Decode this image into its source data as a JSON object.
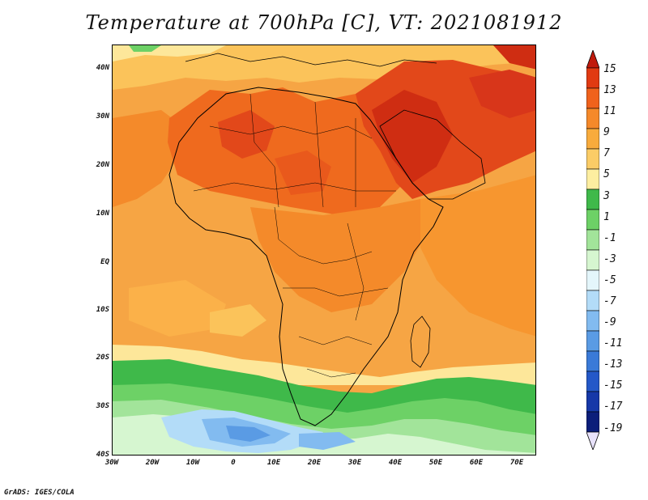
{
  "title": "Temperature at 700hPa [C], VT: 2021081912",
  "credit": "GrADS: IGES/COLA",
  "axes": {
    "lat_ticks": [
      "40N",
      "30N",
      "20N",
      "10N",
      "EQ",
      "10S",
      "20S",
      "30S",
      "40S"
    ],
    "lon_ticks": [
      "30W",
      "20W",
      "10W",
      "0",
      "10E",
      "20E",
      "30E",
      "40E",
      "50E",
      "60E",
      "70E"
    ]
  },
  "colorbar": {
    "labels": [
      "15",
      "13",
      "11",
      "9",
      "7",
      "5",
      "3",
      "1",
      "-1",
      "-3",
      "-5",
      "-7",
      "-9",
      "-11",
      "-13",
      "-15",
      "-17",
      "-19"
    ],
    "colors": [
      "#e13a12",
      "#f0621c",
      "#f5892a",
      "#f8ab3c",
      "#fbcc66",
      "#fdeea0",
      "#3fb94a",
      "#6dd166",
      "#a2e49a",
      "#d6f6d0",
      "#e4f6fb",
      "#b3dcf8",
      "#82bbf0",
      "#5a9be4",
      "#3a7ad8",
      "#2458c8",
      "#1638a8",
      "#0c1e7a"
    ],
    "top_arrow_color": "#c01a0c",
    "bottom_arrow_color": "#e8e2fb"
  }
}
